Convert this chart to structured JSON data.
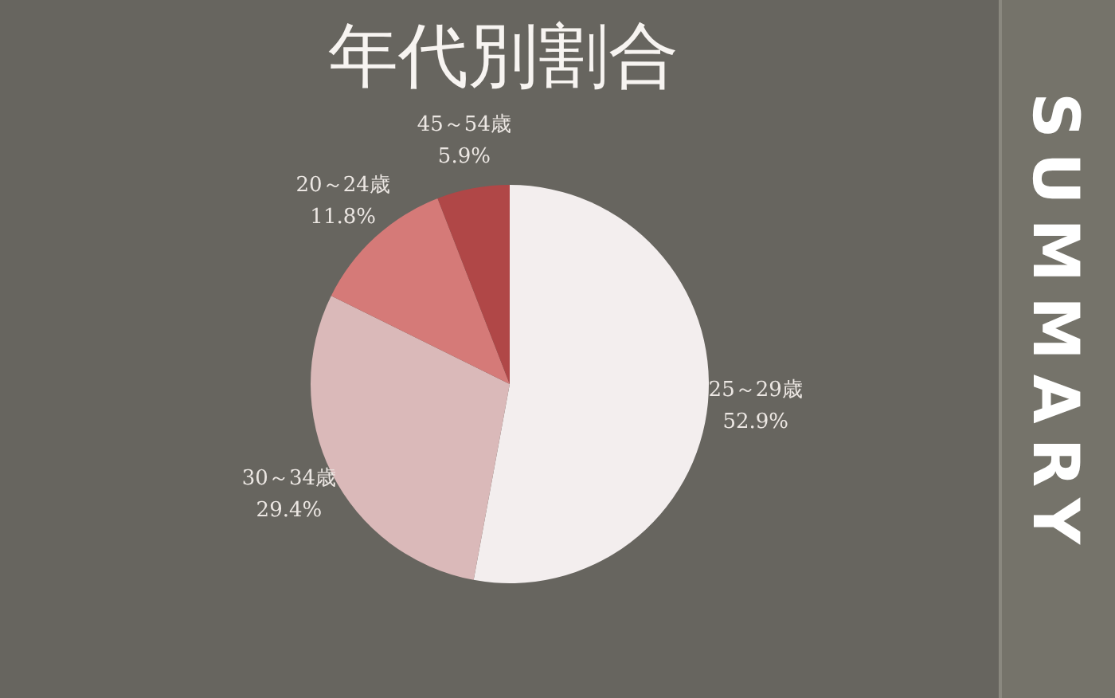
{
  "chart_data": {
    "type": "pie",
    "title": "年代別割合",
    "categories": [
      "25～29歳",
      "30～34歳",
      "20～24歳",
      "45～54歳"
    ],
    "values": [
      52.9,
      29.4,
      11.8,
      5.9
    ],
    "colors": [
      "#f3eeee",
      "#dab9b9",
      "#d57a78",
      "#b04747"
    ],
    "value_labels": [
      "52.9%",
      "29.4%",
      "11.8%",
      "5.9%"
    ],
    "annotations": [
      "SUMMARY"
    ]
  }
}
